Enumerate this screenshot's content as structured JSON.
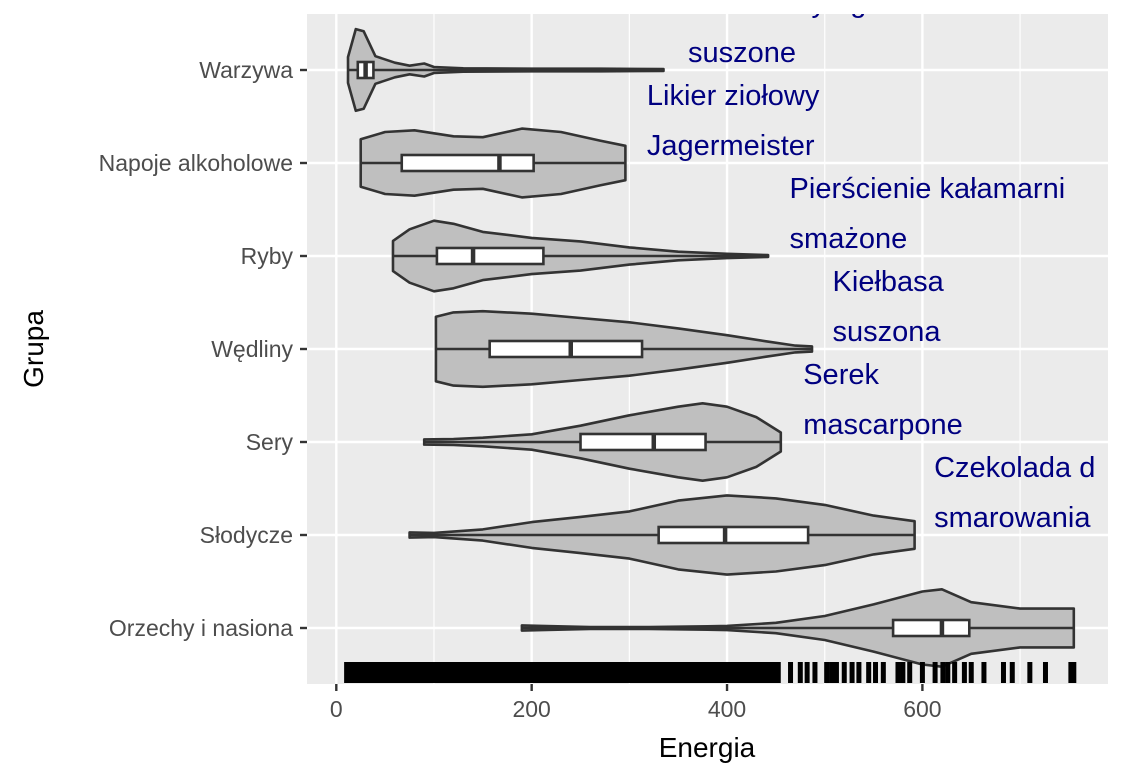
{
  "chart_data": {
    "type": "violin",
    "xlabel": "Energia",
    "ylabel": "Grupa",
    "xlim": [
      -30,
      790
    ],
    "xticks": [
      0,
      200,
      400,
      600
    ],
    "grid": true,
    "colors": {
      "panel_bg": "#ebebeb",
      "grid": "#ffffff",
      "violin_fill": "#bfbfbf",
      "violin_stroke": "#333333",
      "box_fill": "#ffffff",
      "annotation": "#000080",
      "rug": "#000000"
    },
    "groups": [
      {
        "name": "Orzechy i nasiona",
        "violin": [
          [
            190,
            0.06
          ],
          [
            210,
            0.05
          ],
          [
            260,
            0.02
          ],
          [
            320,
            0.02
          ],
          [
            380,
            0.04
          ],
          [
            400,
            0.05
          ],
          [
            450,
            0.12
          ],
          [
            500,
            0.28
          ],
          [
            550,
            0.55
          ],
          [
            600,
            0.85
          ],
          [
            620,
            0.9
          ],
          [
            650,
            0.6
          ],
          [
            700,
            0.45
          ],
          [
            730,
            0.45
          ],
          [
            755,
            0.45
          ]
        ],
        "box": {
          "q1": 570,
          "median": 620,
          "q3": 648
        },
        "whisker": [
          190,
          755
        ]
      },
      {
        "name": "Słodycze",
        "violin": [
          [
            75,
            0.06
          ],
          [
            100,
            0.05
          ],
          [
            150,
            0.13
          ],
          [
            200,
            0.3
          ],
          [
            250,
            0.42
          ],
          [
            300,
            0.55
          ],
          [
            350,
            0.8
          ],
          [
            400,
            0.92
          ],
          [
            450,
            0.85
          ],
          [
            500,
            0.7
          ],
          [
            550,
            0.45
          ],
          [
            592,
            0.32
          ]
        ],
        "box": {
          "q1": 330,
          "median": 398,
          "q3": 483
        },
        "whisker": [
          75,
          592
        ]
      },
      {
        "name": "Sery",
        "violin": [
          [
            90,
            0.06
          ],
          [
            120,
            0.07
          ],
          [
            150,
            0.1
          ],
          [
            200,
            0.18
          ],
          [
            250,
            0.38
          ],
          [
            300,
            0.62
          ],
          [
            350,
            0.82
          ],
          [
            375,
            0.9
          ],
          [
            400,
            0.82
          ],
          [
            430,
            0.58
          ],
          [
            455,
            0.22
          ]
        ],
        "box": {
          "q1": 250,
          "median": 325,
          "q3": 378
        },
        "whisker": [
          90,
          455
        ]
      },
      {
        "name": "Wędliny",
        "violin": [
          [
            102,
            0.75
          ],
          [
            120,
            0.85
          ],
          [
            150,
            0.88
          ],
          [
            200,
            0.82
          ],
          [
            250,
            0.72
          ],
          [
            300,
            0.62
          ],
          [
            350,
            0.48
          ],
          [
            400,
            0.32
          ],
          [
            440,
            0.18
          ],
          [
            470,
            0.08
          ],
          [
            487,
            0.06
          ]
        ],
        "box": {
          "q1": 157,
          "median": 240,
          "q3": 313
        },
        "whisker": [
          102,
          487
        ]
      },
      {
        "name": "Ryby",
        "violin": [
          [
            58,
            0.35
          ],
          [
            75,
            0.62
          ],
          [
            100,
            0.82
          ],
          [
            120,
            0.75
          ],
          [
            150,
            0.56
          ],
          [
            200,
            0.42
          ],
          [
            250,
            0.34
          ],
          [
            300,
            0.2
          ],
          [
            350,
            0.1
          ],
          [
            400,
            0.05
          ],
          [
            442,
            0.02
          ]
        ],
        "box": {
          "q1": 103,
          "median": 140,
          "q3": 212
        },
        "whisker": [
          58,
          442
        ]
      },
      {
        "name": "Napoje alkoholowe",
        "violin": [
          [
            25,
            0.55
          ],
          [
            50,
            0.72
          ],
          [
            80,
            0.76
          ],
          [
            120,
            0.62
          ],
          [
            150,
            0.6
          ],
          [
            190,
            0.8
          ],
          [
            230,
            0.72
          ],
          [
            270,
            0.52
          ],
          [
            296,
            0.4
          ]
        ],
        "box": {
          "q1": 67,
          "median": 167,
          "q3": 202
        },
        "whisker": [
          25,
          296
        ]
      },
      {
        "name": "Warzywa",
        "violin": [
          [
            12,
            0.3
          ],
          [
            20,
            0.95
          ],
          [
            28,
            0.9
          ],
          [
            40,
            0.32
          ],
          [
            60,
            0.17
          ],
          [
            75,
            0.1
          ],
          [
            90,
            0.15
          ],
          [
            100,
            0.07
          ],
          [
            130,
            0.04
          ],
          [
            200,
            0.03
          ],
          [
            270,
            0.03
          ],
          [
            335,
            0.02
          ]
        ],
        "box": {
          "q1": 22,
          "median": 30,
          "q3": 38
        },
        "whisker": [
          12,
          335
        ]
      }
    ],
    "annotations": [
      {
        "lines": [
          "Czekolada d",
          "smarowania"
        ],
        "x": 612,
        "group": "Słodycze"
      },
      {
        "lines": [
          "Serek",
          "mascarpone"
        ],
        "x": 478,
        "group": "Sery"
      },
      {
        "lines": [
          "Kiełbasa",
          "suszona"
        ],
        "x": 508,
        "group": "Wędliny"
      },
      {
        "lines": [
          "Pierścienie kałamarni",
          "smażone"
        ],
        "x": 464,
        "group": "Ryby"
      },
      {
        "lines": [
          "Likier ziołowy",
          "Jagermeister"
        ],
        "x": 318,
        "group": "Napoje alkoholowe"
      },
      {
        "lines": [
          "Wodorosty agar",
          "suszone"
        ],
        "x": 360,
        "group": "Warzywa"
      }
    ],
    "rug_dense_ranges": [
      [
        8,
        455
      ]
    ],
    "rug_points": [
      465,
      475,
      482,
      490,
      502,
      507,
      512,
      520,
      528,
      535,
      545,
      552,
      560,
      575,
      580,
      587,
      600,
      613,
      621,
      626,
      633,
      643,
      650,
      663,
      683,
      692,
      710,
      726,
      752,
      755
    ]
  }
}
